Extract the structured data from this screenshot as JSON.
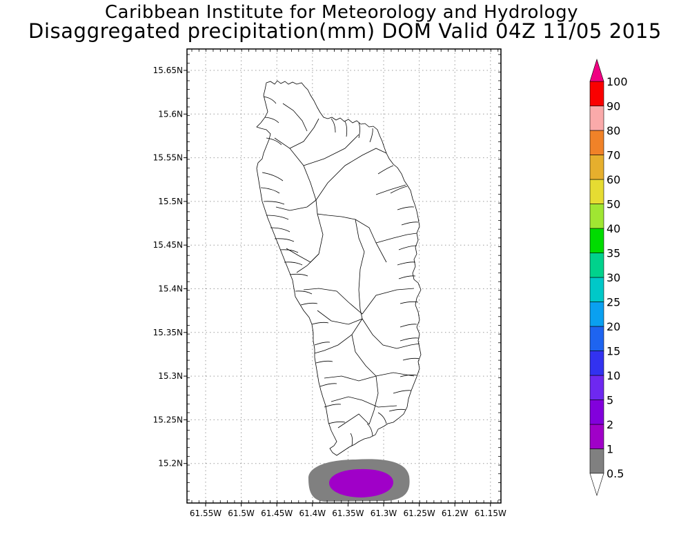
{
  "header": {
    "title_line1": "Caribbean Institute for Meteorology and Hydrology",
    "title_line2": "Disaggregated precipitation(mm) DOM Valid 04Z 11/05 2015"
  },
  "map": {
    "lat_labels": [
      "15.65N",
      "15.6N",
      "15.55N",
      "15.5N",
      "15.45N",
      "15.4N",
      "15.35N",
      "15.3N",
      "15.25N",
      "15.2N"
    ],
    "lon_labels": [
      "61.55W",
      "61.5W",
      "61.45W",
      "61.4W",
      "61.35W",
      "61.3W",
      "61.25W",
      "61.2W",
      "61.15W"
    ],
    "grid": true,
    "precip_areas": [
      {
        "threshold": "0.5",
        "color": "#808080"
      },
      {
        "threshold": "1",
        "color": "#a000c8"
      }
    ]
  },
  "colorbar": {
    "levels": [
      {
        "label": "0.5",
        "color": "#808080"
      },
      {
        "label": "1",
        "color": "#a000c8"
      },
      {
        "label": "2",
        "color": "#8200dc"
      },
      {
        "label": "5",
        "color": "#6e28f0"
      },
      {
        "label": "10",
        "color": "#3232f0"
      },
      {
        "label": "15",
        "color": "#1e64f0"
      },
      {
        "label": "20",
        "color": "#0aa0f0"
      },
      {
        "label": "25",
        "color": "#00c8c8"
      },
      {
        "label": "30",
        "color": "#00d28c"
      },
      {
        "label": "35",
        "color": "#00dc00"
      },
      {
        "label": "40",
        "color": "#a0e632"
      },
      {
        "label": "50",
        "color": "#e6dc32"
      },
      {
        "label": "60",
        "color": "#e6af2d"
      },
      {
        "label": "70",
        "color": "#f08228"
      },
      {
        "label": "80",
        "color": "#faaaaa"
      },
      {
        "label": "90",
        "color": "#fa0000"
      },
      {
        "label": "100",
        "color": "#f04a4a"
      }
    ],
    "top_arrow_color": "#f00082",
    "bottom_arrow_color": "#ffffff"
  }
}
